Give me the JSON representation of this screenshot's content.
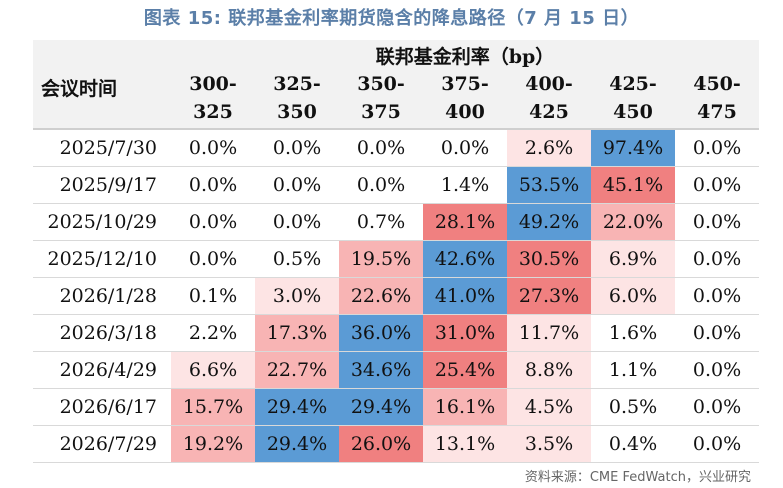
{
  "title": "图表 15: 联邦基金利率期货隐含的降息路径（7 月 15 日）",
  "table": {
    "date_header": "会议时间",
    "group_header": "联邦基金利率（bp）",
    "columns": [
      [
        "300-",
        "325"
      ],
      [
        "325-",
        "350"
      ],
      [
        "350-",
        "375"
      ],
      [
        "375-",
        "400"
      ],
      [
        "400-",
        "425"
      ],
      [
        "425-",
        "450"
      ],
      [
        "450-",
        "475"
      ]
    ],
    "rows": [
      {
        "date": "2025/7/30",
        "values": [
          "0.0%",
          "0.0%",
          "0.0%",
          "0.0%",
          "2.6%",
          "97.4%",
          "0.0%"
        ]
      },
      {
        "date": "2025/9/17",
        "values": [
          "0.0%",
          "0.0%",
          "0.0%",
          "1.4%",
          "53.5%",
          "45.1%",
          "0.0%"
        ]
      },
      {
        "date": "2025/10/29",
        "values": [
          "0.0%",
          "0.0%",
          "0.7%",
          "28.1%",
          "49.2%",
          "22.0%",
          "0.0%"
        ]
      },
      {
        "date": "2025/12/10",
        "values": [
          "0.0%",
          "0.5%",
          "19.5%",
          "42.6%",
          "30.5%",
          "6.9%",
          "0.0%"
        ]
      },
      {
        "date": "2026/1/28",
        "values": [
          "0.1%",
          "3.0%",
          "22.6%",
          "41.0%",
          "27.3%",
          "6.0%",
          "0.0%"
        ]
      },
      {
        "date": "2026/3/18",
        "values": [
          "2.2%",
          "17.3%",
          "36.0%",
          "31.0%",
          "11.7%",
          "1.6%",
          "0.0%"
        ]
      },
      {
        "date": "2026/4/29",
        "values": [
          "6.6%",
          "22.7%",
          "34.6%",
          "25.4%",
          "8.8%",
          "1.1%",
          "0.0%"
        ]
      },
      {
        "date": "2026/6/17",
        "values": [
          "15.7%",
          "29.4%",
          "29.4%",
          "16.1%",
          "4.5%",
          "0.5%",
          "0.0%"
        ]
      },
      {
        "date": "2026/7/29",
        "values": [
          "19.2%",
          "29.4%",
          "26.0%",
          "13.1%",
          "3.5%",
          "0.4%",
          "0.0%"
        ]
      }
    ]
  },
  "colors": {
    "max_cell": "#5b9bd5",
    "strong": "#f08080",
    "medium": "#f8b4b4",
    "light": "#fde4e4",
    "none": "#ffffff"
  },
  "source": "资料来源：CME FedWatch，兴业研究"
}
